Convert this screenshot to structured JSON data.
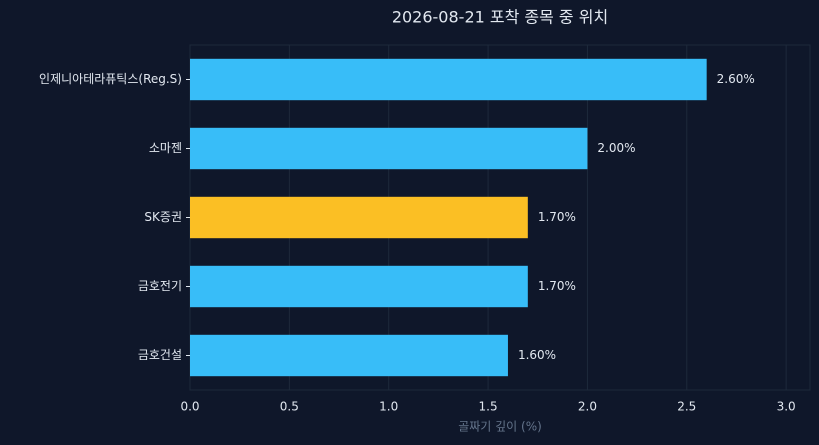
{
  "chart_data": {
    "type": "hbar",
    "title": "2026-08-21 포착 종목 중 위치",
    "categories": [
      "인제니아테라퓨틱스(Reg.S)",
      "소마젠",
      "SK증권",
      "금호전기",
      "금호건설"
    ],
    "values": [
      2.6,
      2.0,
      1.7,
      1.7,
      1.6
    ],
    "value_labels": [
      "2.60%",
      "2.00%",
      "1.70%",
      "1.70%",
      "1.60%"
    ],
    "colors": [
      "#38bdf8",
      "#38bdf8",
      "#fbbf24",
      "#38bdf8",
      "#38bdf8"
    ],
    "xlabel": "골짜기 깊이 (%)",
    "xlim": [
      0,
      3.12
    ],
    "xticks": [
      {
        "value": 0,
        "label": "0.0"
      },
      0.5,
      {
        "value": 1,
        "label": "1.0"
      },
      1.5,
      {
        "value": 2,
        "label": "2.0"
      },
      2.5,
      {
        "value": 3,
        "label": "3.0"
      }
    ],
    "grid": true
  }
}
